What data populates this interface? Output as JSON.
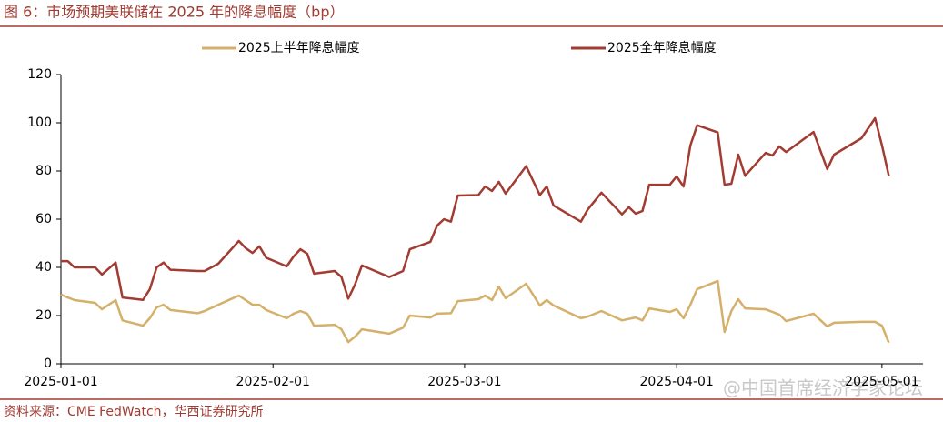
{
  "header": {
    "title": "图 6：市场预期美联储在 2025 年的降息幅度（bp）"
  },
  "chart_data": {
    "type": "line",
    "x": [
      "2025-01-01",
      "2025-01-02",
      "2025-01-03",
      "2025-01-06",
      "2025-01-07",
      "2025-01-09",
      "2025-01-10",
      "2025-01-13",
      "2025-01-14",
      "2025-01-15",
      "2025-01-16",
      "2025-01-17",
      "2025-01-21",
      "2025-01-22",
      "2025-01-24",
      "2025-01-27",
      "2025-01-28",
      "2025-01-29",
      "2025-01-30",
      "2025-01-31",
      "2025-02-03",
      "2025-02-04",
      "2025-02-05",
      "2025-02-06",
      "2025-02-07",
      "2025-02-10",
      "2025-02-11",
      "2025-02-12",
      "2025-02-13",
      "2025-02-14",
      "2025-02-18",
      "2025-02-20",
      "2025-02-21",
      "2025-02-24",
      "2025-02-25",
      "2025-02-26",
      "2025-02-27",
      "2025-02-28",
      "2025-03-03",
      "2025-03-04",
      "2025-03-05",
      "2025-03-06",
      "2025-03-07",
      "2025-03-10",
      "2025-03-12",
      "2025-03-13",
      "2025-03-14",
      "2025-03-18",
      "2025-03-19",
      "2025-03-21",
      "2025-03-24",
      "2025-03-25",
      "2025-03-26",
      "2025-03-27",
      "2025-03-28",
      "2025-03-31",
      "2025-04-01",
      "2025-04-02",
      "2025-04-03",
      "2025-04-04",
      "2025-04-07",
      "2025-04-08",
      "2025-04-09",
      "2025-04-10",
      "2025-04-11",
      "2025-04-14",
      "2025-04-15",
      "2025-04-16",
      "2025-04-17",
      "2025-04-21",
      "2025-04-23",
      "2025-04-24",
      "2025-04-28",
      "2025-04-30",
      "2025-05-01",
      "2025-05-02"
    ],
    "series": [
      {
        "name": "2025上半年降息幅度",
        "color": "#d4b06a",
        "values": [
          28.7,
          27.5,
          26.4,
          25.3,
          22.6,
          26.4,
          18,
          15.8,
          18.9,
          23.4,
          24.5,
          22.3,
          21,
          21.9,
          24.5,
          28.3,
          26.4,
          24.5,
          24.5,
          22.3,
          18.9,
          20.8,
          21.9,
          20.8,
          15.8,
          16.2,
          14.3,
          9,
          11.3,
          14.3,
          12.5,
          15,
          20,
          19.2,
          20.8,
          20.9,
          21,
          26,
          26.8,
          28.3,
          26.4,
          32,
          27.2,
          33.2,
          24.2,
          26.4,
          24.2,
          18.9,
          19.6,
          21.9,
          18,
          18.6,
          19.2,
          18,
          23,
          21.5,
          22.6,
          18.9,
          24.5,
          31,
          34.3,
          13.2,
          21.9,
          26.8,
          23,
          22.6,
          21.5,
          20.4,
          17.7,
          20.8,
          15.5,
          17,
          17.4,
          17.4,
          15.8,
          8.7
        ]
      },
      {
        "name": "2025全年降息幅度",
        "color": "#a23b32",
        "values": [
          42.6,
          42.6,
          40,
          40,
          37,
          42,
          27.5,
          26.5,
          31,
          40,
          42,
          39,
          38.5,
          38.5,
          41.5,
          51,
          48,
          46,
          48.7,
          44,
          40.4,
          44.5,
          47.5,
          45.7,
          37.4,
          38.5,
          36,
          27,
          33,
          40.8,
          36,
          38.5,
          47.5,
          50.6,
          57.4,
          60,
          59,
          69.8,
          70,
          73.6,
          71.7,
          75.5,
          70.6,
          82,
          70,
          73.6,
          65.7,
          59,
          64,
          71,
          62,
          65,
          62.3,
          63.4,
          74.3,
          74.3,
          77.7,
          73.6,
          90.6,
          99,
          96,
          74.3,
          74.7,
          86.8,
          78,
          87.5,
          86.4,
          90.2,
          87.9,
          96.2,
          80.8,
          86.8,
          93.6,
          101.9,
          90.6,
          78
        ]
      }
    ],
    "xlim": [
      "2025-01-01",
      "2025-05-07"
    ],
    "xticks": [
      "2025-01-01",
      "2025-02-01",
      "2025-03-01",
      "2025-04-01",
      "2025-05-01"
    ],
    "ylim": [
      0,
      120
    ],
    "yticks": [
      0,
      20,
      40,
      60,
      80,
      100,
      120
    ],
    "grid": false,
    "legend": "top"
  },
  "footer": {
    "source": "资料来源：CME FedWatch，华西证券研究所",
    "watermark": "@中国首席经济学家论坛"
  }
}
